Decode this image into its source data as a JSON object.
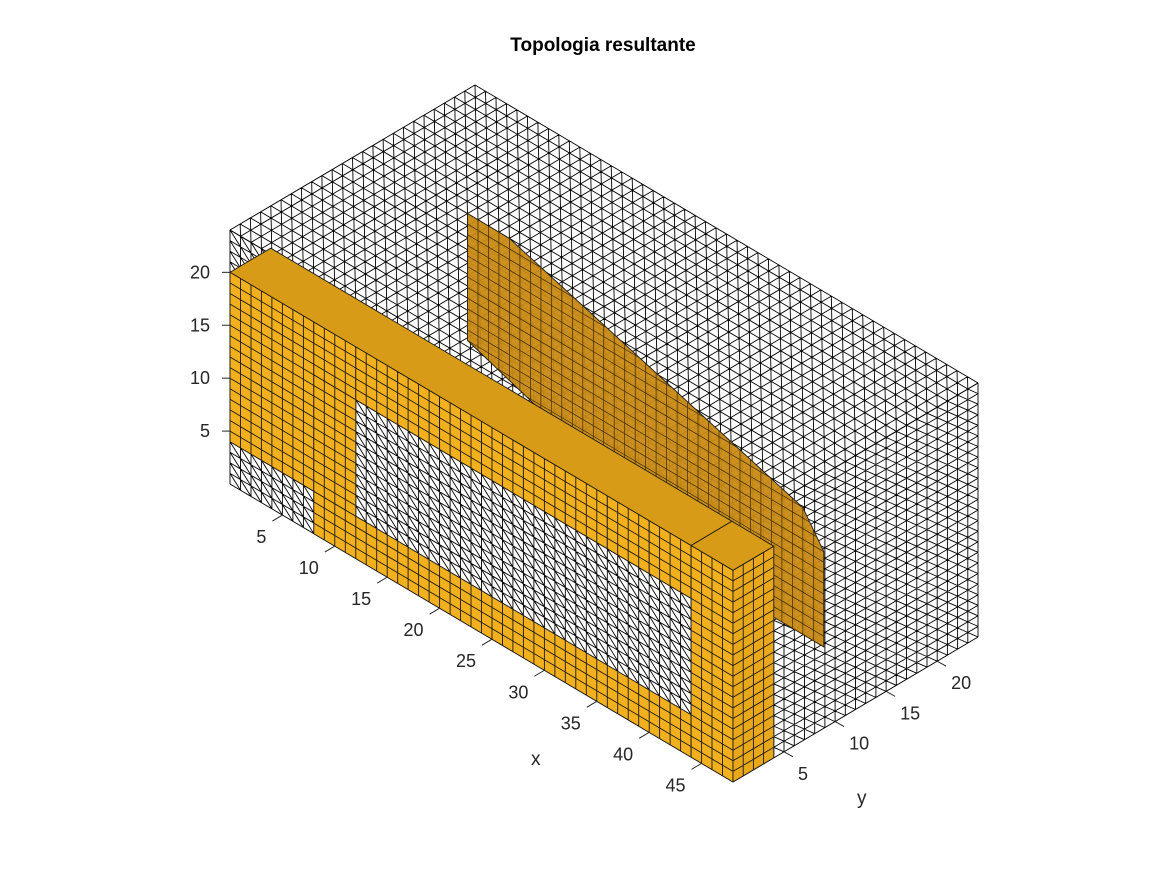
{
  "chart_data": {
    "type": "voxel-3d",
    "title": "Topologia resultante",
    "xlabel": "x",
    "ylabel": "y",
    "zlabel": "",
    "grid": "voxel mesh",
    "domain": {
      "nx": 48,
      "ny": 24,
      "nz": 24
    },
    "x_ticks": [
      5,
      10,
      15,
      20,
      25,
      30,
      35,
      40,
      45
    ],
    "y_ticks": [
      5,
      10,
      15,
      20
    ],
    "z_ticks": [
      5,
      10,
      15,
      20
    ],
    "colors": {
      "solid_front": "#f2b01e",
      "solid_top": "#d89b18",
      "solid_side": "#e9a81c",
      "solid_interior": "#c98a14",
      "mesh_line": "#000000",
      "text": "#262626"
    },
    "solid_regions": {
      "front_plate": {
        "x": [
          1,
          48
        ],
        "y": [
          1,
          4
        ],
        "z": [
          5,
          20
        ],
        "note": "left upright x 1-8, top chord z 16-20"
      },
      "bottom_chord": {
        "x": [
          9,
          48
        ],
        "y": [
          1,
          4
        ],
        "z": [
          1,
          4
        ]
      },
      "back_plate": {
        "x": [
          10,
          48
        ],
        "y": [
          5,
          22
        ],
        "z": [
          4,
          24
        ]
      },
      "right_leg": {
        "x": [
          45,
          48
        ],
        "y": [
          1,
          4
        ],
        "z": [
          1,
          24
        ]
      }
    }
  }
}
